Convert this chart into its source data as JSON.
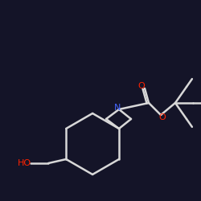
{
  "background_color": "#141428",
  "bond_color": "#d8d8d8",
  "atom_colors": {
    "N": "#4466ff",
    "O": "#ff2200",
    "C": "#d8d8d8"
  },
  "bond_width": 1.8,
  "figsize": [
    2.5,
    2.5
  ],
  "dpi": 100,
  "xlim": [
    0,
    250
  ],
  "ylim": [
    0,
    250
  ]
}
